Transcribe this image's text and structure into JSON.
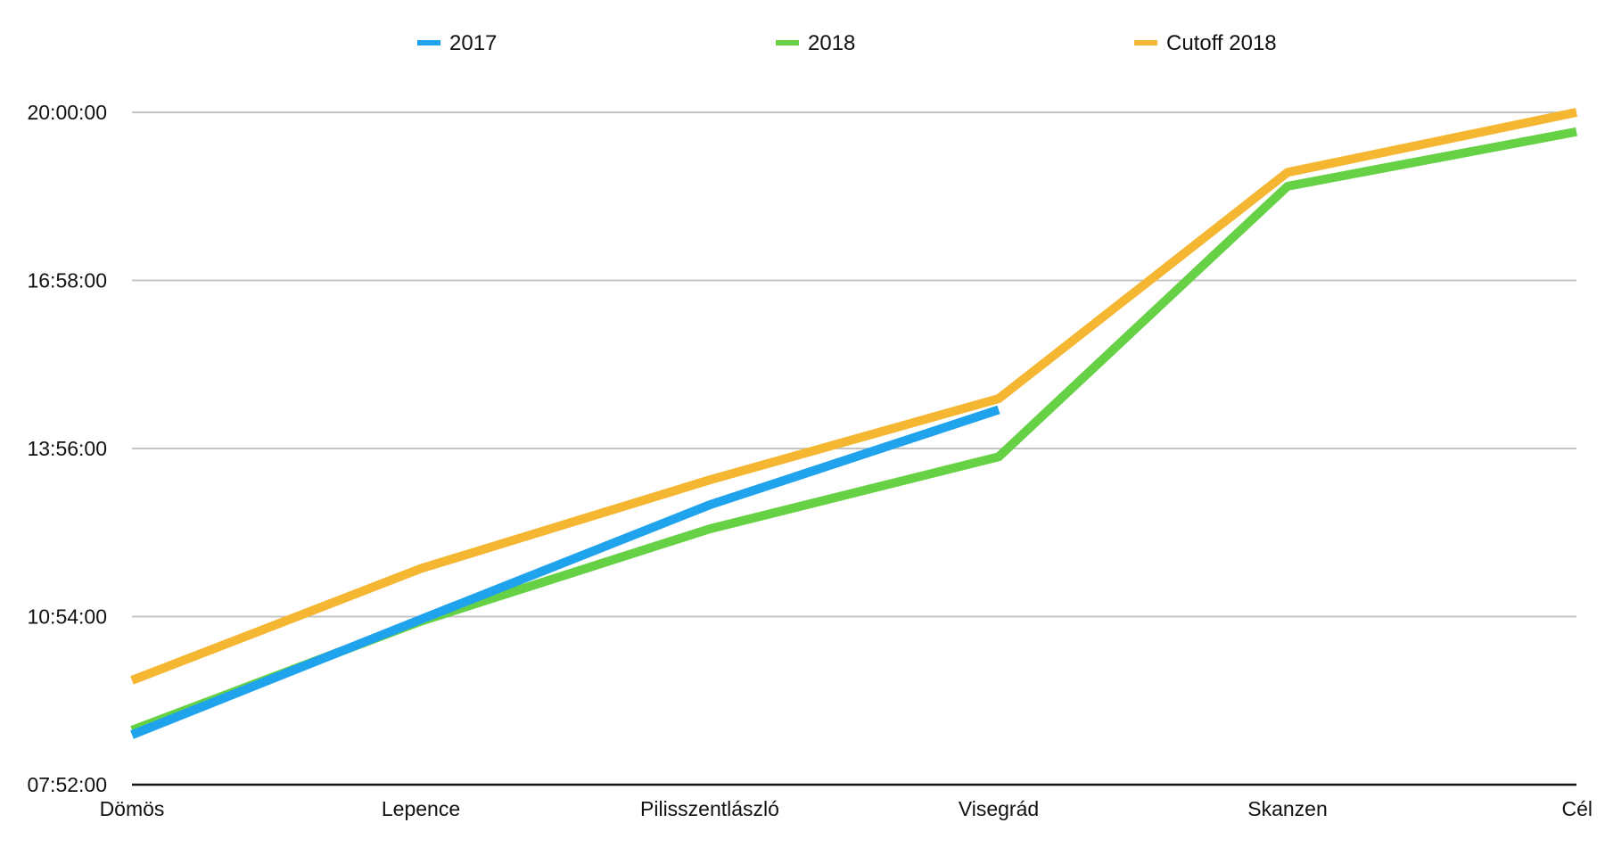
{
  "chart_data": {
    "type": "line",
    "title": "",
    "xlabel": "",
    "ylabel": "",
    "categories": [
      "Dömös",
      "Lepence",
      "Pilisszentlászló",
      "Visegrád",
      "Skanzen",
      "Cél"
    ],
    "y_ticks": [
      "07:52:00",
      "10:54:00",
      "13:56:00",
      "16:58:00",
      "20:00:00"
    ],
    "ylim": [
      "07:52:00",
      "20:00:00"
    ],
    "grid": true,
    "legend_position": "top",
    "series": [
      {
        "name": "2017",
        "color": "#1fa3ec",
        "values": [
          "08:46:00",
          "10:51:00",
          "12:55:00",
          "14:38:00",
          null,
          null
        ]
      },
      {
        "name": "2018",
        "color": "#66d144",
        "values": [
          "08:51:00",
          "10:49:00",
          "12:29:00",
          "13:47:00",
          "18:40:00",
          "19:39:00"
        ]
      },
      {
        "name": "Cutoff 2018",
        "color": "#f5b731",
        "values": [
          "09:45:00",
          "11:46:00",
          "13:22:00",
          "14:50:00",
          "18:55:00",
          "20:00:00"
        ]
      }
    ]
  }
}
